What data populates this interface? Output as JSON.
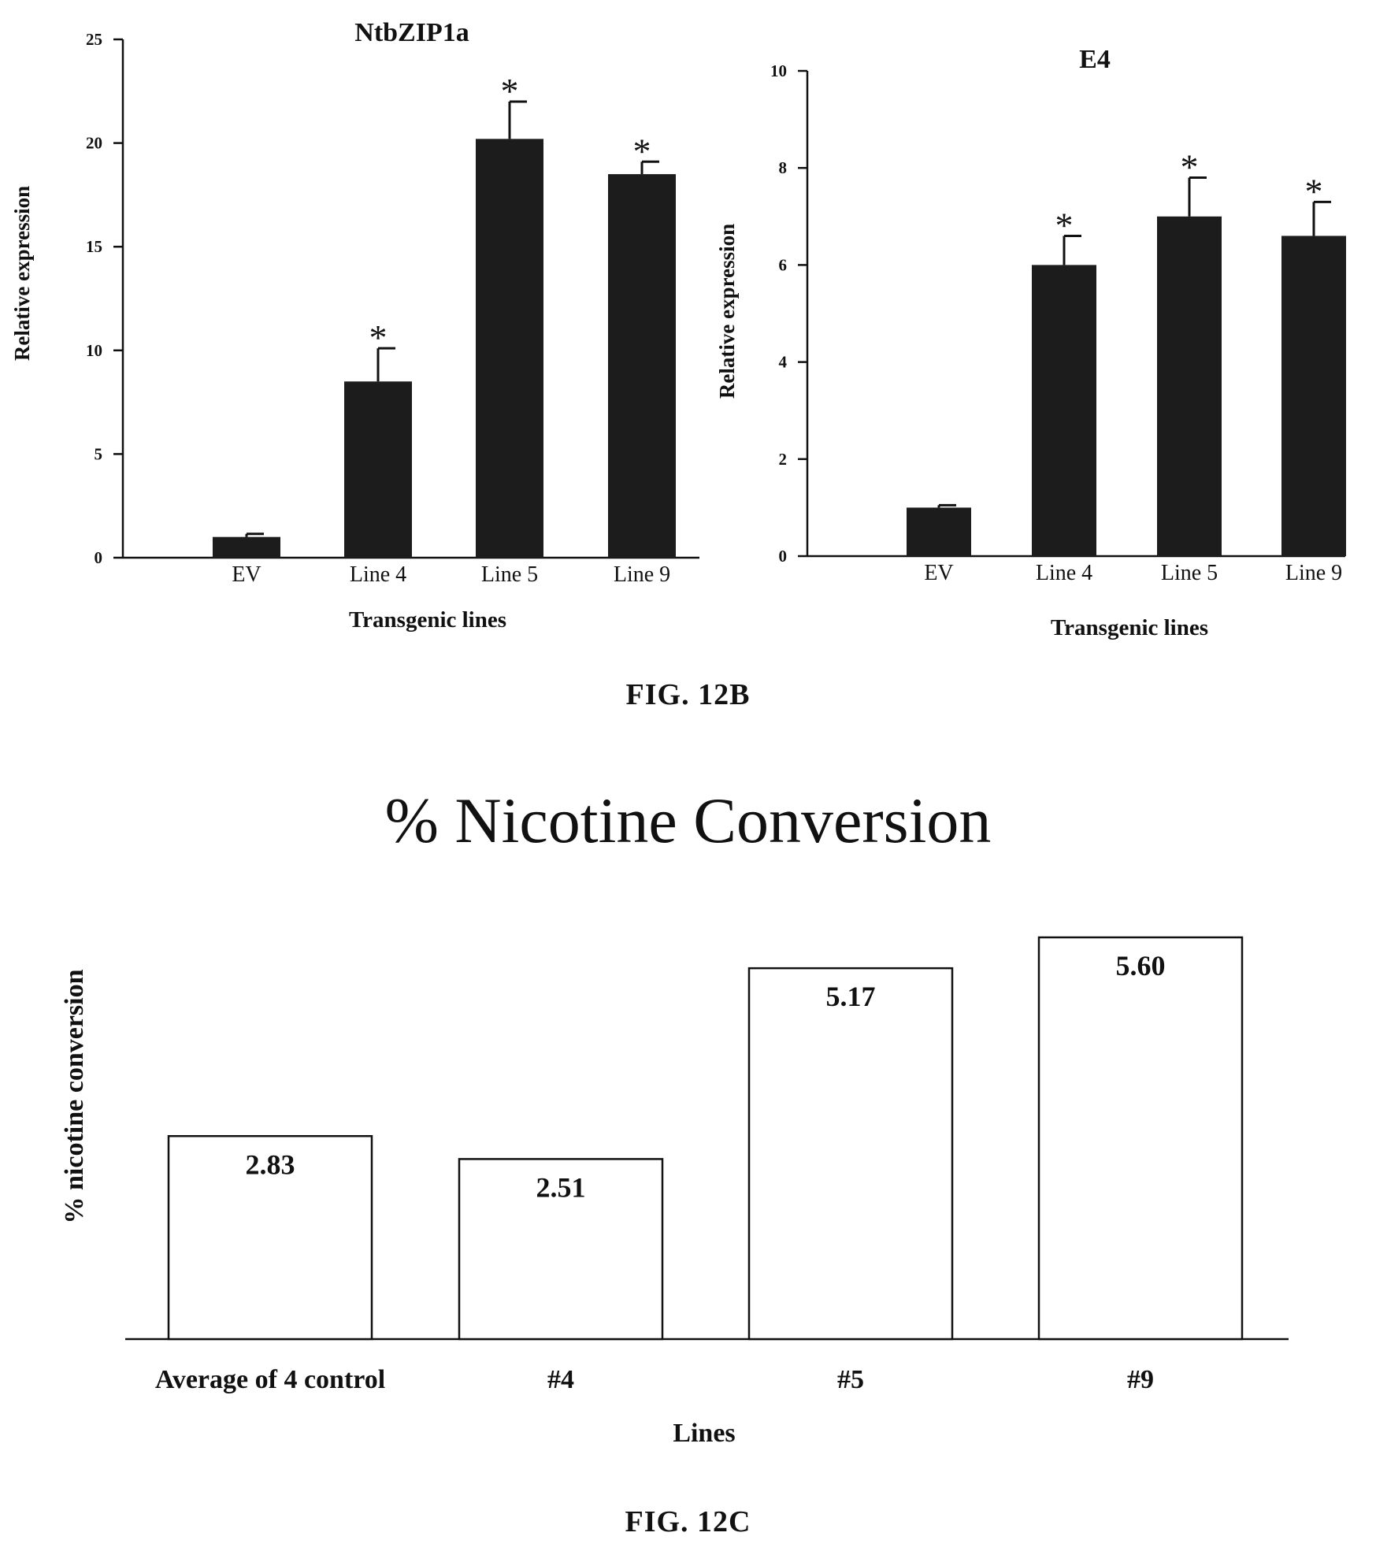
{
  "figure_b_label": "FIG. 12B",
  "figure_c_label": "FIG. 12C",
  "colors": {
    "bar_dark": "#1c1c1c",
    "ink": "#111111",
    "bar_open_fill": "#ffffff"
  },
  "chart_data": [
    {
      "id": "ntbzip1a",
      "type": "bar",
      "title": "NtbZIP1a",
      "xlabel": "Transgenic lines",
      "ylabel": "Relative expression",
      "categories": [
        "EV",
        "Line 4",
        "Line 5",
        "Line 9"
      ],
      "values": [
        1.0,
        8.5,
        20.2,
        18.5
      ],
      "errors": [
        0.15,
        1.6,
        1.8,
        0.6
      ],
      "significance": [
        "",
        "*",
        "*",
        "*"
      ],
      "ylim": [
        0,
        25
      ],
      "yticks": [
        0,
        5,
        10,
        15,
        20,
        25
      ],
      "grid": false,
      "bar_style": "solid-dark"
    },
    {
      "id": "e4",
      "type": "bar",
      "title": "E4",
      "xlabel": "Transgenic lines",
      "ylabel": "Relative expression",
      "categories": [
        "EV",
        "Line 4",
        "Line 5",
        "Line 9"
      ],
      "values": [
        1.0,
        6.0,
        7.0,
        6.6
      ],
      "errors": [
        0.05,
        0.6,
        0.8,
        0.7
      ],
      "significance": [
        "",
        "*",
        "*",
        "*"
      ],
      "ylim": [
        0,
        10
      ],
      "yticks": [
        0,
        2,
        4,
        6,
        8,
        10
      ],
      "grid": false,
      "bar_style": "solid-dark"
    },
    {
      "id": "nicotine",
      "type": "bar",
      "title": "% Nicotine Conversion",
      "xlabel": "Lines",
      "ylabel": "% nicotine conversion",
      "categories": [
        "Average of 4 control",
        "#4",
        "#5",
        "#9"
      ],
      "values": [
        2.83,
        2.51,
        5.17,
        5.6
      ],
      "value_labels": [
        "2.83",
        "2.51",
        "5.17",
        "5.60"
      ],
      "ylim": [
        0,
        5.6
      ],
      "grid": false,
      "bar_style": "open-outline"
    }
  ]
}
